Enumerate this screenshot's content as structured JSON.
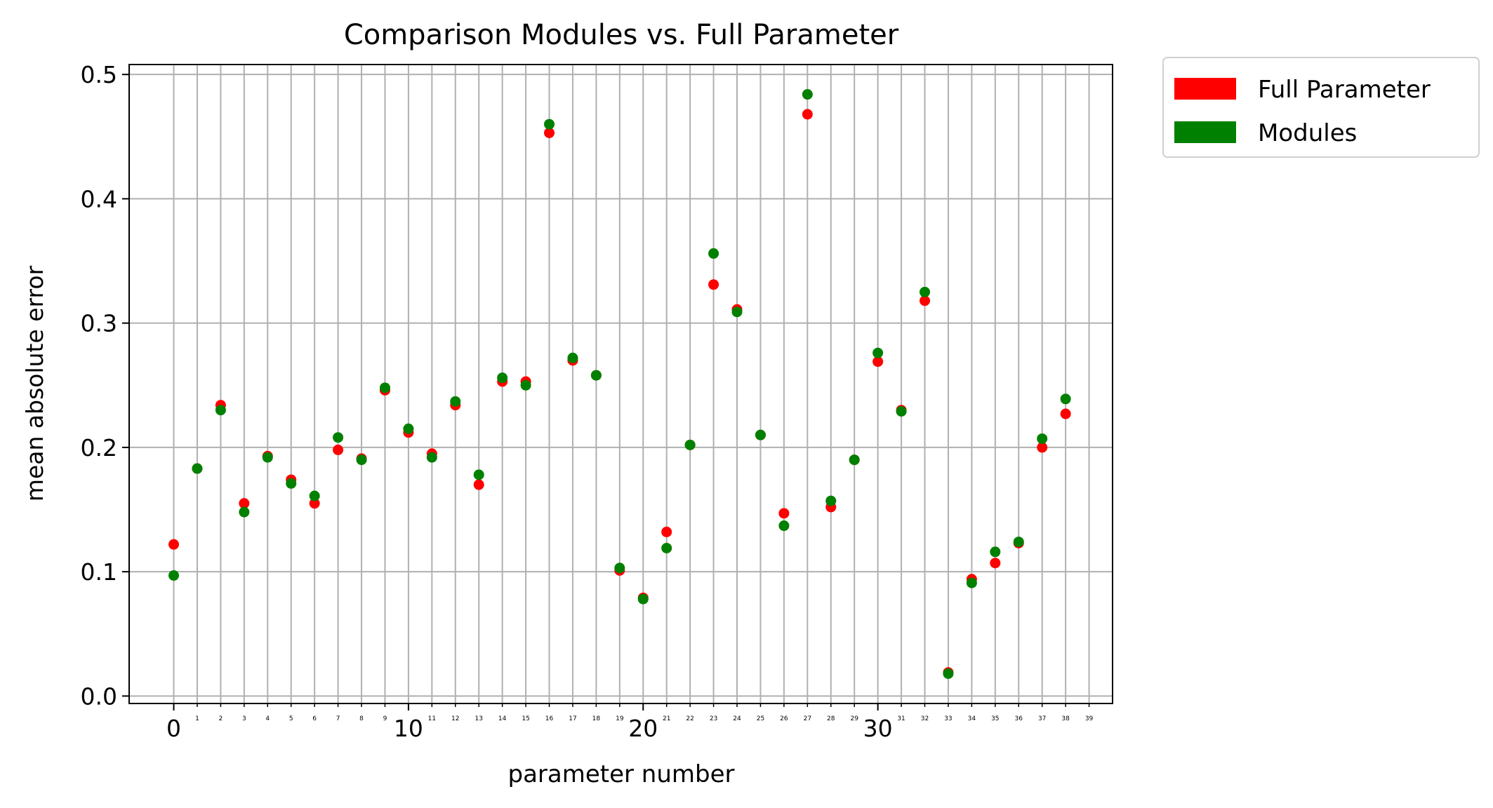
{
  "chart_data": {
    "type": "scatter",
    "title": "Comparison Modules vs. Full Parameter",
    "xlabel": "parameter number",
    "ylabel": "mean absolute error",
    "xlim": [
      -1.9,
      40.0
    ],
    "ylim": [
      -0.006,
      0.508
    ],
    "grid": true,
    "legend_position": "outside-top-right",
    "x_major_ticks": [
      0,
      10,
      20,
      30
    ],
    "x_major_tick_labels": [
      "0",
      "10",
      "20",
      "30"
    ],
    "x_minor_ticks": [
      1,
      2,
      3,
      4,
      5,
      6,
      7,
      8,
      9,
      11,
      12,
      13,
      14,
      15,
      16,
      17,
      18,
      19,
      21,
      22,
      23,
      24,
      25,
      26,
      27,
      28,
      29,
      31,
      32,
      33,
      34,
      35,
      36,
      37,
      38,
      39
    ],
    "x_minor_tick_labels": [
      "1",
      "2",
      "3",
      "4",
      "5",
      "6",
      "7",
      "8",
      "9",
      "11",
      "12",
      "13",
      "14",
      "15",
      "16",
      "17",
      "18",
      "19",
      "21",
      "22",
      "23",
      "24",
      "25",
      "26",
      "27",
      "28",
      "29",
      "31",
      "32",
      "33",
      "34",
      "35",
      "36",
      "37",
      "38",
      "39"
    ],
    "y_ticks": [
      0.0,
      0.1,
      0.2,
      0.3,
      0.4,
      0.5
    ],
    "y_tick_labels": [
      "0.0",
      "0.1",
      "0.2",
      "0.3",
      "0.4",
      "0.5"
    ],
    "x": [
      0,
      1,
      2,
      3,
      4,
      5,
      6,
      7,
      8,
      9,
      10,
      11,
      12,
      13,
      14,
      15,
      16,
      17,
      18,
      19,
      20,
      21,
      22,
      23,
      24,
      25,
      26,
      27,
      28,
      29,
      30,
      31,
      32,
      33,
      34,
      35,
      36,
      37,
      38
    ],
    "series": [
      {
        "name": "Full Parameter",
        "color": "#ff0000",
        "values": [
          0.122,
          0.183,
          0.234,
          0.155,
          0.193,
          0.174,
          0.155,
          0.198,
          0.191,
          0.246,
          0.212,
          0.195,
          0.234,
          0.17,
          0.253,
          0.253,
          0.453,
          0.27,
          0.258,
          0.101,
          0.079,
          0.132,
          0.202,
          0.331,
          0.311,
          0.21,
          0.147,
          0.468,
          0.152,
          0.19,
          0.269,
          0.23,
          0.318,
          0.019,
          0.094,
          0.107,
          0.123,
          0.2,
          0.227
        ]
      },
      {
        "name": "Modules",
        "color": "#008000",
        "values": [
          0.097,
          0.183,
          0.23,
          0.148,
          0.192,
          0.171,
          0.161,
          0.208,
          0.19,
          0.248,
          0.215,
          0.192,
          0.237,
          0.178,
          0.256,
          0.25,
          0.46,
          0.272,
          0.258,
          0.103,
          0.078,
          0.119,
          0.202,
          0.356,
          0.309,
          0.21,
          0.137,
          0.484,
          0.157,
          0.19,
          0.276,
          0.229,
          0.325,
          0.018,
          0.091,
          0.116,
          0.124,
          0.207,
          0.239
        ]
      }
    ]
  }
}
